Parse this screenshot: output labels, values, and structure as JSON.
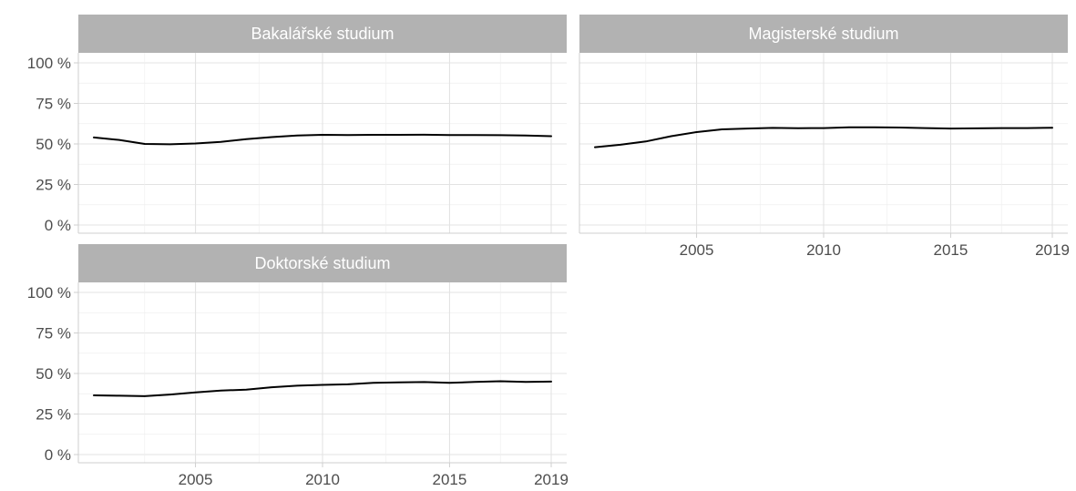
{
  "chart_data": [
    {
      "type": "line",
      "title": "Bakalářské studium",
      "xlabel": "",
      "ylabel": "",
      "xlim": [
        2001,
        2019
      ],
      "ylim": [
        0,
        100
      ],
      "x_ticks": [
        2005,
        2010,
        2015,
        2019
      ],
      "x_tick_labels": [
        "2005",
        "2010",
        "2015",
        "2019"
      ],
      "y_ticks": [
        0,
        25,
        50,
        75,
        100
      ],
      "y_tick_labels": [
        "0 %",
        "25 %",
        "50 %",
        "75 %",
        "100 %"
      ],
      "grid": true,
      "show_x_ticks": false,
      "x": [
        2001,
        2002,
        2003,
        2004,
        2005,
        2006,
        2007,
        2008,
        2009,
        2010,
        2011,
        2012,
        2013,
        2014,
        2015,
        2016,
        2017,
        2018,
        2019
      ],
      "values": [
        54,
        52.5,
        50,
        49.8,
        50.3,
        51.3,
        53,
        54.2,
        55.2,
        55.6,
        55.5,
        55.6,
        55.6,
        55.7,
        55.5,
        55.5,
        55.4,
        55.2,
        54.8
      ]
    },
    {
      "type": "line",
      "title": "Magisterské studium",
      "xlabel": "",
      "ylabel": "",
      "xlim": [
        2001,
        2019
      ],
      "ylim": [
        0,
        100
      ],
      "x_ticks": [
        2005,
        2010,
        2015,
        2019
      ],
      "x_tick_labels": [
        "2005",
        "2010",
        "2015",
        "2019"
      ],
      "y_ticks": [
        0,
        25,
        50,
        75,
        100
      ],
      "y_tick_labels": [],
      "grid": true,
      "show_x_ticks": true,
      "x": [
        2001,
        2002,
        2003,
        2004,
        2005,
        2006,
        2007,
        2008,
        2009,
        2010,
        2011,
        2012,
        2013,
        2014,
        2015,
        2016,
        2017,
        2018,
        2019
      ],
      "values": [
        48,
        49.5,
        51.5,
        54.8,
        57.3,
        59,
        59.5,
        59.9,
        59.7,
        59.8,
        60.2,
        60.3,
        60.1,
        59.8,
        59.5,
        59.6,
        59.8,
        59.8,
        60
      ]
    },
    {
      "type": "line",
      "title": "Doktorské studium",
      "xlabel": "",
      "ylabel": "",
      "xlim": [
        2001,
        2019
      ],
      "ylim": [
        0,
        100
      ],
      "x_ticks": [
        2005,
        2010,
        2015,
        2019
      ],
      "x_tick_labels": [
        "2005",
        "2010",
        "2015",
        "2019"
      ],
      "y_ticks": [
        0,
        25,
        50,
        75,
        100
      ],
      "y_tick_labels": [
        "0 %",
        "25 %",
        "50 %",
        "75 %",
        "100 %"
      ],
      "grid": true,
      "show_x_ticks": true,
      "x": [
        2001,
        2002,
        2003,
        2004,
        2005,
        2006,
        2007,
        2008,
        2009,
        2010,
        2011,
        2012,
        2013,
        2014,
        2015,
        2016,
        2017,
        2018,
        2019
      ],
      "values": [
        36.5,
        36.3,
        36,
        37,
        38.3,
        39.5,
        40,
        41.5,
        42.5,
        43,
        43.3,
        44.2,
        44.5,
        44.7,
        44.2,
        44.8,
        45.2,
        44.8,
        45
      ]
    }
  ],
  "colors": {
    "strip": "#b2b2b2",
    "line": "#000000",
    "grid": "#e3e3e3"
  }
}
